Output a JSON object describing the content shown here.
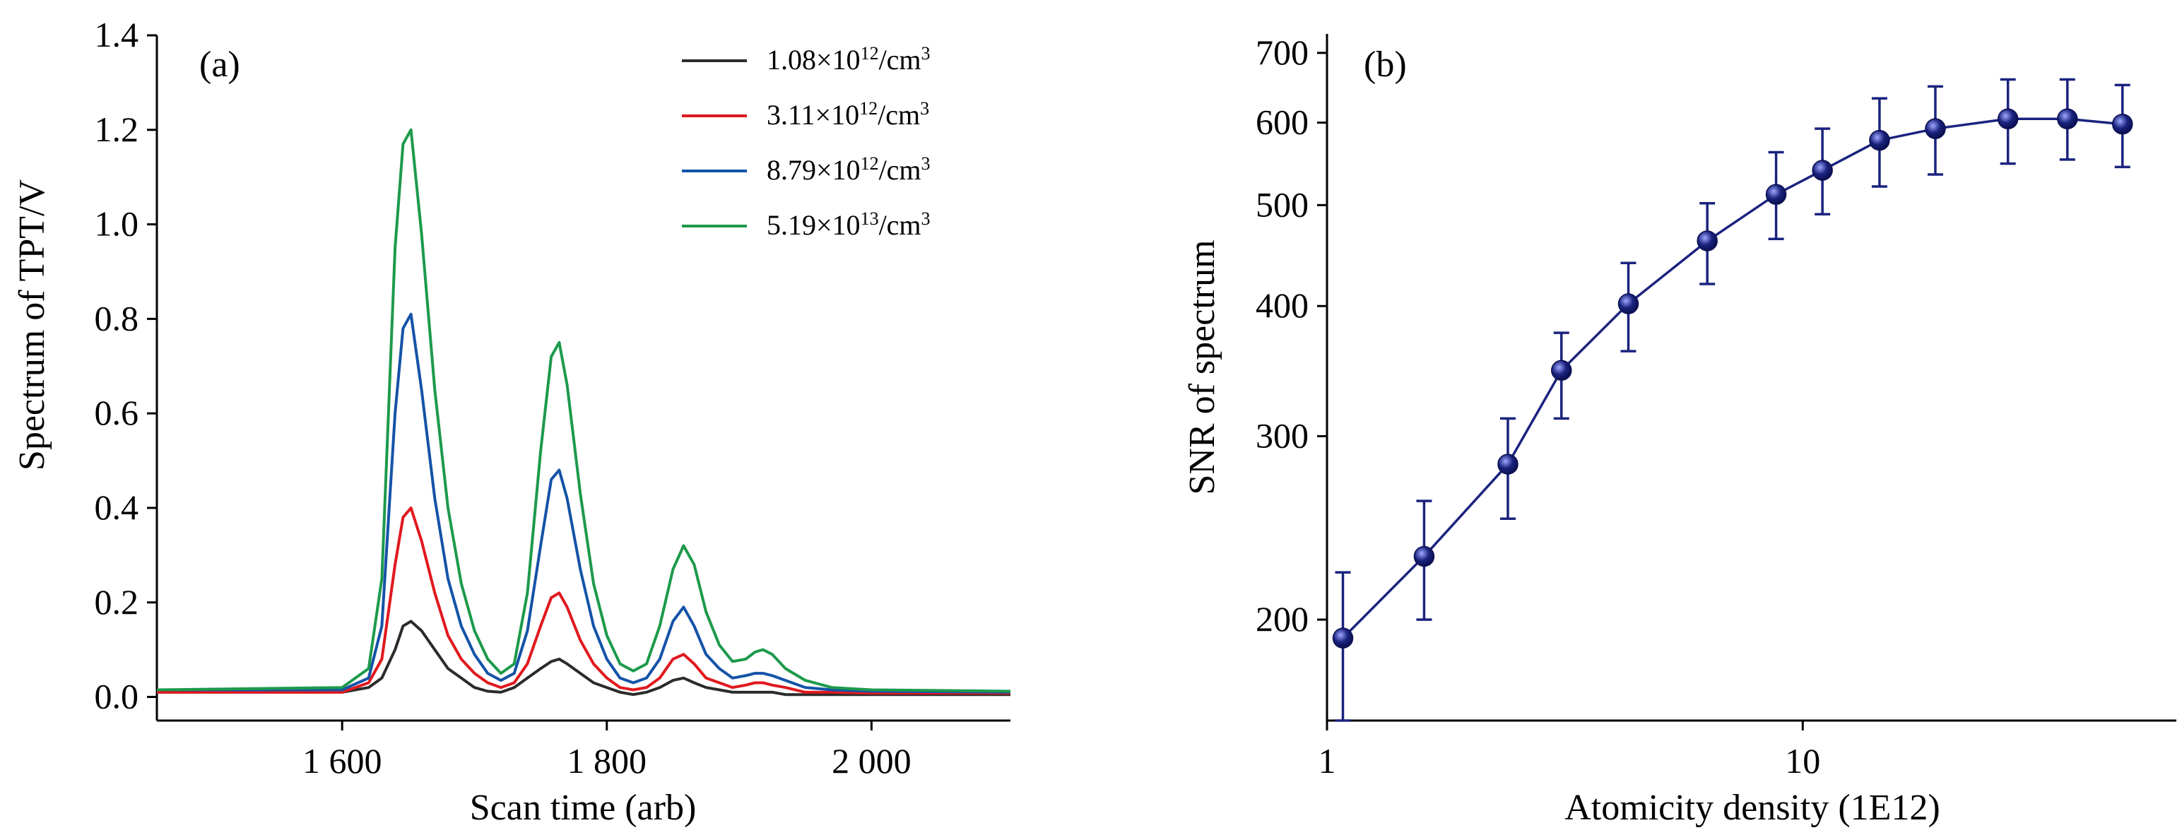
{
  "chart_data": [
    {
      "type": "line",
      "panel_label": "(a)",
      "xlabel": "Scan time (arb)",
      "ylabel": "Spectrum of TPT/V",
      "xlim": [
        1460,
        2105
      ],
      "ylim": [
        -0.05,
        1.4
      ],
      "xticks": [
        {
          "value": 1600,
          "label": "1 600"
        },
        {
          "value": 1800,
          "label": "1 800"
        },
        {
          "value": 2000,
          "label": "2 000"
        }
      ],
      "yticks": [
        {
          "value": 0.0,
          "label": "0.0"
        },
        {
          "value": 0.2,
          "label": "0.2"
        },
        {
          "value": 0.4,
          "label": "0.4"
        },
        {
          "value": 0.6,
          "label": "0.6"
        },
        {
          "value": 0.8,
          "label": "0.8"
        },
        {
          "value": 1.0,
          "label": "1.0"
        },
        {
          "value": 1.2,
          "label": "1.2"
        },
        {
          "value": 1.4,
          "label": "1.4"
        }
      ],
      "legend_position": "top-right",
      "x": [
        1460,
        1600,
        1620,
        1630,
        1640,
        1646,
        1652,
        1660,
        1670,
        1680,
        1690,
        1700,
        1710,
        1720,
        1730,
        1740,
        1750,
        1758,
        1764,
        1770,
        1780,
        1790,
        1800,
        1810,
        1820,
        1830,
        1840,
        1850,
        1858,
        1866,
        1875,
        1885,
        1895,
        1905,
        1912,
        1918,
        1925,
        1935,
        1950,
        1970,
        2000,
        2105
      ],
      "series": [
        {
          "name": "1.08×10¹²/cm³",
          "base": "1.08×10",
          "exp": "12",
          "unit": "/cm",
          "unit_exp": "3",
          "color": "#2b2b2b",
          "values": [
            0.01,
            0.01,
            0.02,
            0.04,
            0.1,
            0.15,
            0.16,
            0.14,
            0.1,
            0.06,
            0.04,
            0.02,
            0.012,
            0.01,
            0.02,
            0.04,
            0.06,
            0.075,
            0.08,
            0.07,
            0.05,
            0.03,
            0.02,
            0.01,
            0.005,
            0.01,
            0.02,
            0.035,
            0.04,
            0.03,
            0.02,
            0.015,
            0.01,
            0.01,
            0.01,
            0.01,
            0.01,
            0.005,
            0.005,
            0.005,
            0.005,
            0.005
          ]
        },
        {
          "name": "3.11×10¹²/cm³",
          "base": "3.11×10",
          "exp": "12",
          "unit": "/cm",
          "unit_exp": "3",
          "color": "#e0191e",
          "values": [
            0.01,
            0.01,
            0.03,
            0.08,
            0.28,
            0.38,
            0.4,
            0.33,
            0.22,
            0.13,
            0.08,
            0.05,
            0.03,
            0.02,
            0.03,
            0.07,
            0.15,
            0.21,
            0.22,
            0.19,
            0.12,
            0.07,
            0.04,
            0.02,
            0.015,
            0.02,
            0.04,
            0.08,
            0.09,
            0.07,
            0.04,
            0.03,
            0.02,
            0.025,
            0.03,
            0.03,
            0.025,
            0.02,
            0.01,
            0.01,
            0.008,
            0.008
          ]
        },
        {
          "name": "8.79×10¹²/cm³",
          "base": "8.79×10",
          "exp": "12",
          "unit": "/cm",
          "unit_exp": "3",
          "color": "#1453a8",
          "values": [
            0.015,
            0.015,
            0.04,
            0.15,
            0.6,
            0.78,
            0.81,
            0.65,
            0.42,
            0.25,
            0.15,
            0.09,
            0.05,
            0.035,
            0.05,
            0.14,
            0.32,
            0.46,
            0.48,
            0.42,
            0.27,
            0.15,
            0.08,
            0.04,
            0.03,
            0.04,
            0.08,
            0.16,
            0.19,
            0.15,
            0.09,
            0.06,
            0.04,
            0.045,
            0.05,
            0.05,
            0.045,
            0.035,
            0.02,
            0.015,
            0.012,
            0.01
          ]
        },
        {
          "name": "5.19×10¹³/cm³",
          "base": "5.19×10",
          "exp": "13",
          "unit": "/cm",
          "unit_exp": "3",
          "color": "#1d9a4b",
          "values": [
            0.015,
            0.02,
            0.06,
            0.25,
            0.95,
            1.17,
            1.2,
            0.98,
            0.65,
            0.4,
            0.24,
            0.14,
            0.08,
            0.05,
            0.07,
            0.22,
            0.52,
            0.72,
            0.75,
            0.66,
            0.43,
            0.24,
            0.13,
            0.07,
            0.055,
            0.07,
            0.15,
            0.27,
            0.32,
            0.28,
            0.18,
            0.11,
            0.075,
            0.08,
            0.095,
            0.1,
            0.09,
            0.06,
            0.035,
            0.02,
            0.015,
            0.012
          ]
        }
      ]
    },
    {
      "type": "scatter",
      "panel_label": "(b)",
      "xlabel": "Atomicity density (1E12)",
      "ylabel": "SNR of spectrum",
      "xscale": "log",
      "yscale": "log",
      "xlim": [
        1.0,
        61.0
      ],
      "ylim": [
        160,
        730
      ],
      "xticks": [
        {
          "value": 1,
          "label": "1"
        },
        {
          "value": 10,
          "label": "10"
        }
      ],
      "yticks": [
        {
          "value": 200,
          "label": "200"
        },
        {
          "value": 300,
          "label": "300"
        },
        {
          "value": 400,
          "label": "400"
        },
        {
          "value": 500,
          "label": "500"
        },
        {
          "value": 600,
          "label": "600"
        },
        {
          "value": 700,
          "label": "700"
        }
      ],
      "color": "#1a237e",
      "x": [
        1.08,
        1.6,
        2.4,
        3.11,
        4.3,
        6.3,
        8.79,
        11.0,
        14.5,
        19.0,
        27.0,
        36.0,
        47.0
      ],
      "y": [
        192,
        230,
        282,
        347,
        402,
        462,
        512,
        540,
        577,
        592,
        605,
        605,
        598
      ],
      "yerr_low": [
        32,
        30,
        32,
        35,
        40,
        42,
        48,
        50,
        56,
        57,
        57,
        52,
        54
      ],
      "yerr_high": [
        30,
        30,
        30,
        30,
        38,
        40,
        50,
        52,
        56,
        58,
        55,
        55,
        54
      ]
    }
  ]
}
